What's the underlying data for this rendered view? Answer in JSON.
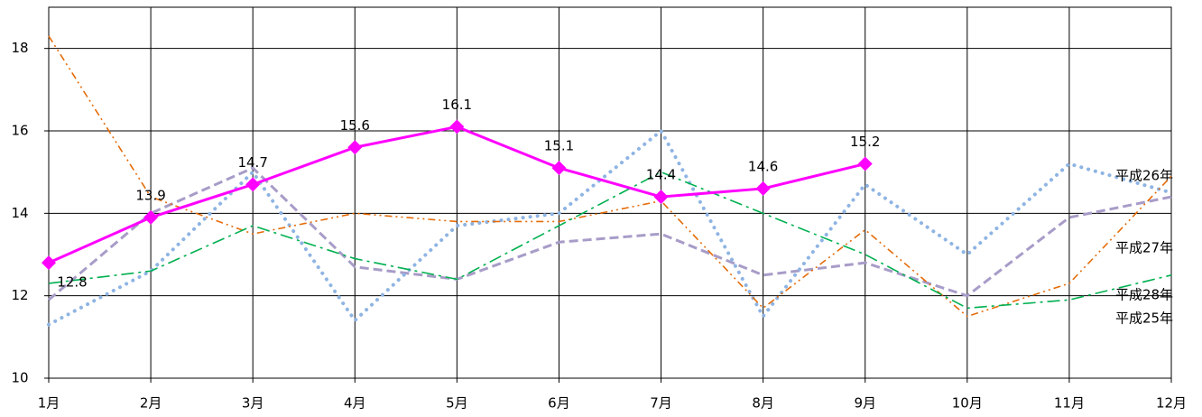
{
  "chart_data": {
    "type": "line",
    "categories": [
      "1月",
      "2月",
      "3月",
      "4月",
      "5月",
      "6月",
      "7月",
      "8月",
      "9月",
      "10月",
      "11月",
      "12月"
    ],
    "ylim": [
      10,
      19
    ],
    "yticks": [
      10,
      12,
      14,
      16,
      18
    ],
    "grid": true,
    "series": [
      {
        "name": "平成25年",
        "color": "#a89cc8",
        "style": "dashed",
        "values": [
          11.9,
          14.0,
          15.1,
          12.7,
          12.4,
          13.3,
          13.5,
          12.5,
          12.8,
          12.0,
          13.9,
          14.4
        ]
      },
      {
        "name": "平成26年",
        "color": "#8eb4e3",
        "style": "dotted",
        "values": [
          11.3,
          12.6,
          15.0,
          11.4,
          13.7,
          14.0,
          16.0,
          11.5,
          14.7,
          13.0,
          15.2,
          14.5
        ]
      },
      {
        "name": "平成27年",
        "color": "#e46c0a",
        "style": "dash-dot-dot",
        "values": [
          18.3,
          14.4,
          13.5,
          14.0,
          13.8,
          13.8,
          14.3,
          11.7,
          13.6,
          11.5,
          12.3,
          14.9
        ]
      },
      {
        "name": "平成28年",
        "color": "#00b050",
        "style": "dash-dot",
        "values": [
          12.3,
          12.6,
          13.7,
          12.9,
          12.4,
          13.7,
          15.0,
          14.0,
          13.0,
          11.7,
          11.9,
          12.5
        ]
      },
      {
        "color": "#ff00ff",
        "style": "solid",
        "marker": "diamond",
        "values": [
          12.8,
          13.9,
          14.7,
          15.6,
          16.1,
          15.1,
          14.4,
          14.6,
          15.2,
          null,
          null,
          null
        ]
      }
    ]
  }
}
